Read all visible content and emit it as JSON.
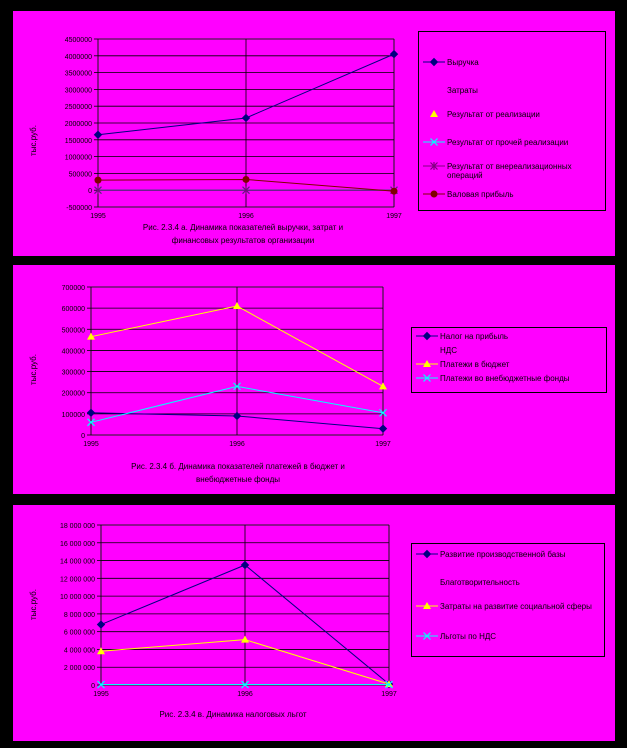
{
  "chart_data": [
    {
      "type": "line",
      "categories": [
        "1995",
        "1996",
        "1997"
      ],
      "ylabel": "тыс.руб.",
      "ylim": [
        -500000,
        4500000
      ],
      "yticks": [
        "-500000",
        "0",
        "500000",
        "1000000",
        "1500000",
        "2000000",
        "2500000",
        "3000000",
        "3500000",
        "4000000",
        "4500000"
      ],
      "series": [
        {
          "name": "Выручка",
          "values": [
            1650000,
            2150000,
            4050000
          ],
          "color": "#000080",
          "marker": "diamond"
        },
        {
          "name": "Затраты",
          "values": [
            null,
            null,
            null
          ],
          "color": "#ff00ff",
          "marker": "square"
        },
        {
          "name": "Результат от реализации",
          "values": [
            null,
            null,
            null
          ],
          "color": "#ffff00",
          "marker": "triangle"
        },
        {
          "name": "Результат от прочей реализации",
          "values": [
            0,
            0,
            0
          ],
          "color": "#00ffff",
          "marker": "x"
        },
        {
          "name": "Результат от внереализационных операций",
          "values": [
            0,
            0,
            0
          ],
          "color": "#800080",
          "marker": "star"
        },
        {
          "name": "Валовая прибыль",
          "values": [
            300000,
            320000,
            -30000
          ],
          "color": "#800000",
          "marker": "circle"
        }
      ],
      "caption": [
        "Рис. 2.3.4 а. Динамика показателей выручки, затрат и",
        "финансовых результатов организации"
      ]
    },
    {
      "type": "line",
      "categories": [
        "1995",
        "1996",
        "1997"
      ],
      "ylabel": "тыс.руб.",
      "ylim": [
        0,
        700000
      ],
      "yticks": [
        "0",
        "100000",
        "200000",
        "300000",
        "400000",
        "500000",
        "600000",
        "700000"
      ],
      "series": [
        {
          "name": "Налог на прибыль",
          "values": [
            105000,
            90000,
            30000
          ],
          "color": "#000080",
          "marker": "diamond"
        },
        {
          "name": "НДС",
          "values": [
            null,
            null,
            null
          ],
          "color": "#ff00ff",
          "marker": "square"
        },
        {
          "name": "Платежи в бюджет",
          "values": [
            465000,
            610000,
            230000
          ],
          "color": "#ffff00",
          "marker": "triangle"
        },
        {
          "name": "Платежи во внебюджетные фонды",
          "values": [
            60000,
            230000,
            105000
          ],
          "color": "#00ffff",
          "marker": "x"
        }
      ],
      "caption": [
        "Рис. 2.3.4 б. Динамика показателей платежей в бюджет и",
        "внебюджетные фонды"
      ]
    },
    {
      "type": "line",
      "categories": [
        "1995",
        "1996",
        "1997"
      ],
      "ylabel": "тыс.руб.",
      "ylim": [
        0,
        18000000
      ],
      "yticks": [
        "0",
        "2 000 000",
        "4 000 000",
        "6 000 000",
        "8 000 000",
        "10 000 000",
        "12 000 000",
        "14 000 000",
        "16 000 000",
        "18 000 000"
      ],
      "series": [
        {
          "name": "Развитие производственной базы",
          "values": [
            6800000,
            13500000,
            100000
          ],
          "color": "#000080",
          "marker": "diamond"
        },
        {
          "name": "Благотворительность",
          "values": [
            null,
            null,
            null
          ],
          "color": "#ff00ff",
          "marker": "square"
        },
        {
          "name": "Затраты на развитие социальной сферы",
          "values": [
            3800000,
            5100000,
            100000
          ],
          "color": "#ffff00",
          "marker": "triangle"
        },
        {
          "name": "Льготы по НДС",
          "values": [
            50000,
            50000,
            50000
          ],
          "color": "#00ffff",
          "marker": "x"
        }
      ],
      "caption": [
        "Рис. 2.3.4 в. Динамика налоговых льгот"
      ]
    }
  ]
}
